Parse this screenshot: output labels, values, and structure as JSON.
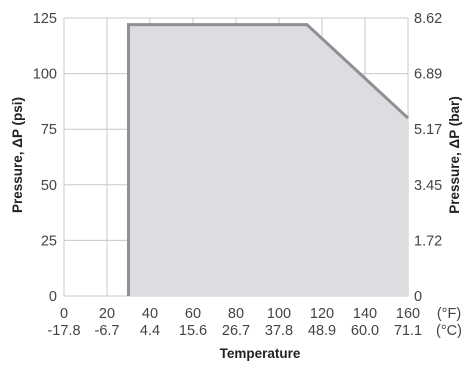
{
  "chart_data": {
    "type": "area",
    "title": "",
    "xlabel": "Temperature",
    "ylabel": "Pressure, ΔP (psi)",
    "y2label": "Pressure, ΔP (bar)",
    "x_unit_primary": "(°F)",
    "x_unit_secondary": "(°C)",
    "xlim": [
      0,
      160
    ],
    "ylim": [
      0,
      125
    ],
    "grid": true,
    "x_ticks_f": [
      "0",
      "20",
      "40",
      "60",
      "80",
      "100",
      "120",
      "140",
      "160"
    ],
    "x_ticks_c": [
      "-17.8",
      "-6.7",
      "4.4",
      "15.6",
      "26.7",
      "37.8",
      "48.9",
      "60.0",
      "71.1"
    ],
    "y_ticks_psi": [
      "0",
      "25",
      "50",
      "75",
      "100",
      "125"
    ],
    "y_ticks_bar": [
      "0",
      "1.72",
      "3.45",
      "5.17",
      "6.89",
      "8.62"
    ],
    "series": [
      {
        "x": [
          30,
          30,
          113,
          160,
          160
        ],
        "y": [
          0,
          122,
          122,
          80,
          0
        ]
      }
    ],
    "colors": {
      "fill": "#dcdde0",
      "line": "#8f9094",
      "grid": "#c8c8c8",
      "text": "#444444"
    }
  }
}
